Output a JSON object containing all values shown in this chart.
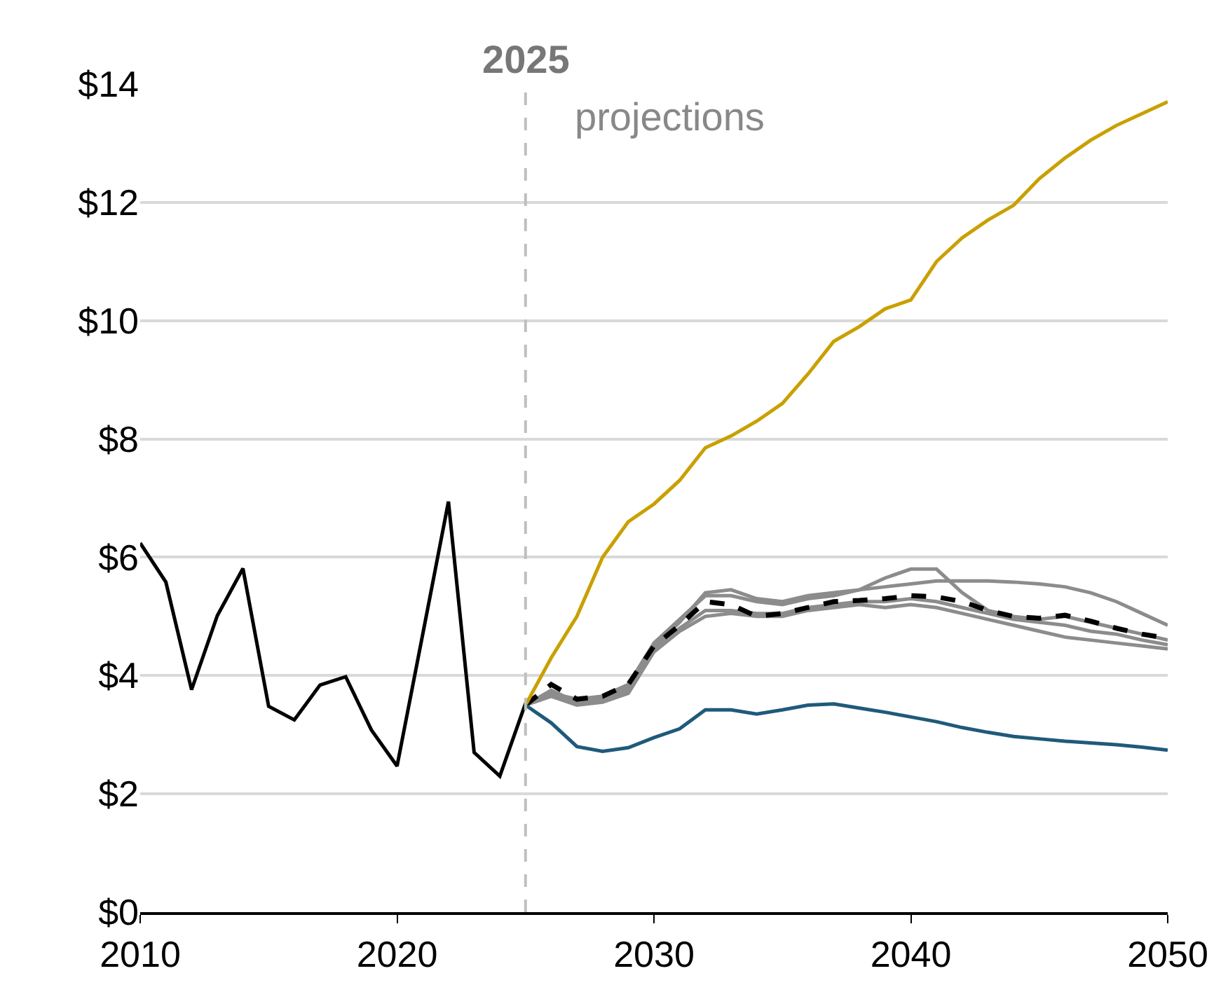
{
  "chart_data": {
    "type": "line",
    "annotations": [
      "projections"
    ],
    "ref_lines": [
      {
        "axis": "x",
        "value": 2025,
        "label": "2025",
        "color": "#bfbfbf",
        "line_style": "dashed"
      }
    ],
    "xlim": [
      2010,
      2050
    ],
    "xticks": [
      2010,
      2020,
      2030,
      2040,
      2050
    ],
    "ylim": [
      0,
      14
    ],
    "yticks": [
      {
        "value": 0,
        "label": "$0"
      },
      {
        "value": 2,
        "label": "$2"
      },
      {
        "value": 4,
        "label": "$4"
      },
      {
        "value": 6,
        "label": "$6"
      },
      {
        "value": 8,
        "label": "$8"
      },
      {
        "value": 10,
        "label": "$10"
      },
      {
        "value": 12,
        "label": "$12"
      },
      {
        "value": 14,
        "label": "$14"
      }
    ],
    "grid": "y",
    "marker": "none",
    "series": [
      {
        "color": "#8c8c8c",
        "x": [
          2025,
          2026,
          2027,
          2028,
          2029,
          2030,
          2031,
          2032,
          2033,
          2034,
          2035,
          2036,
          2037,
          2038,
          2039,
          2040,
          2041,
          2042,
          2043,
          2044,
          2045,
          2046,
          2047,
          2048,
          2049,
          2050
        ],
        "values": [
          3.5,
          3.75,
          3.55,
          3.6,
          3.8,
          4.5,
          4.9,
          5.4,
          5.45,
          5.3,
          5.25,
          5.35,
          5.4,
          5.45,
          5.65,
          5.8,
          5.8,
          5.4,
          5.1,
          5.0,
          4.95,
          5.0,
          4.9,
          4.8,
          4.7,
          4.6
        ]
      },
      {
        "color": "#8c8c8c",
        "x": [
          2025,
          2026,
          2027,
          2028,
          2029,
          2030,
          2031,
          2032,
          2033,
          2034,
          2035,
          2036,
          2037,
          2038,
          2039,
          2040,
          2041,
          2042,
          2043,
          2044,
          2045,
          2046,
          2047,
          2048,
          2049,
          2050
        ],
        "values": [
          3.5,
          3.7,
          3.6,
          3.65,
          3.85,
          4.55,
          4.95,
          5.35,
          5.35,
          5.25,
          5.2,
          5.3,
          5.35,
          5.45,
          5.5,
          5.55,
          5.6,
          5.6,
          5.6,
          5.58,
          5.55,
          5.5,
          5.4,
          5.25,
          5.05,
          4.85
        ]
      },
      {
        "color": "#8c8c8c",
        "x": [
          2025,
          2026,
          2027,
          2028,
          2029,
          2030,
          2031,
          2032,
          2033,
          2034,
          2035,
          2036,
          2037,
          2038,
          2039,
          2040,
          2041,
          2042,
          2043,
          2044,
          2045,
          2046,
          2047,
          2048,
          2049,
          2050
        ],
        "values": [
          3.5,
          3.65,
          3.5,
          3.55,
          3.7,
          4.4,
          4.75,
          5.0,
          5.05,
          5.0,
          5.0,
          5.1,
          5.15,
          5.2,
          5.15,
          5.2,
          5.15,
          5.05,
          4.95,
          4.85,
          4.75,
          4.65,
          4.6,
          4.55,
          4.5,
          4.45
        ]
      },
      {
        "color": "#8c8c8c",
        "x": [
          2025,
          2026,
          2027,
          2028,
          2029,
          2030,
          2031,
          2032,
          2033,
          2034,
          2035,
          2036,
          2037,
          2038,
          2039,
          2040,
          2041,
          2042,
          2043,
          2044,
          2045,
          2046,
          2047,
          2048,
          2049,
          2050
        ],
        "values": [
          3.5,
          3.7,
          3.55,
          3.6,
          3.75,
          4.45,
          4.8,
          5.1,
          5.1,
          5.05,
          5.05,
          5.15,
          5.2,
          5.25,
          5.25,
          5.3,
          5.25,
          5.15,
          5.05,
          4.95,
          4.9,
          4.85,
          4.75,
          4.7,
          4.6,
          4.52
        ]
      },
      {
        "color": "#000000",
        "line_style": "dashed",
        "x": [
          2025,
          2026,
          2027,
          2028,
          2029,
          2030,
          2031,
          2032,
          2033,
          2034,
          2035,
          2036,
          2037,
          2038,
          2039,
          2040,
          2041,
          2042,
          2043,
          2044,
          2045,
          2046,
          2047,
          2048,
          2049,
          2050
        ],
        "values": [
          3.5,
          3.85,
          3.6,
          3.65,
          3.85,
          4.5,
          4.85,
          5.25,
          5.2,
          5.0,
          5.05,
          5.15,
          5.25,
          5.27,
          5.3,
          5.35,
          5.33,
          5.25,
          5.1,
          5.0,
          4.97,
          5.02,
          4.92,
          4.8,
          4.7,
          4.63
        ]
      },
      {
        "color": "#c9a000",
        "x": [
          2025,
          2026,
          2027,
          2028,
          2029,
          2030,
          2031,
          2032,
          2033,
          2034,
          2035,
          2036,
          2037,
          2038,
          2039,
          2040,
          2041,
          2042,
          2043,
          2044,
          2045,
          2046,
          2047,
          2048,
          2049,
          2050
        ],
        "values": [
          3.5,
          4.3,
          5.0,
          6.0,
          6.6,
          6.9,
          7.3,
          7.85,
          8.05,
          8.3,
          8.6,
          9.1,
          9.65,
          9.9,
          10.2,
          10.35,
          11.0,
          11.4,
          11.7,
          11.95,
          12.4,
          12.75,
          13.05,
          13.3,
          13.5,
          13.7
        ]
      },
      {
        "color": "#1f5a7a",
        "x": [
          2025,
          2026,
          2027,
          2028,
          2029,
          2030,
          2031,
          2032,
          2033,
          2034,
          2035,
          2036,
          2037,
          2038,
          2039,
          2040,
          2041,
          2042,
          2043,
          2044,
          2045,
          2046,
          2047,
          2048,
          2049,
          2050
        ],
        "values": [
          3.5,
          3.2,
          2.8,
          2.72,
          2.78,
          2.95,
          3.1,
          3.42,
          3.42,
          3.35,
          3.42,
          3.5,
          3.52,
          3.45,
          3.38,
          3.3,
          3.22,
          3.12,
          3.04,
          2.97,
          2.93,
          2.89,
          2.86,
          2.83,
          2.79,
          2.74
        ]
      },
      {
        "color": "#000000",
        "x": [
          2010,
          2011,
          2012,
          2013,
          2014,
          2015,
          2016,
          2017,
          2018,
          2019,
          2020,
          2021,
          2022,
          2023,
          2024,
          2025
        ],
        "values": [
          6.24,
          5.58,
          3.76,
          5.01,
          5.81,
          3.48,
          3.25,
          3.84,
          3.98,
          3.08,
          2.47,
          4.7,
          6.94,
          2.7,
          2.3,
          3.53
        ]
      }
    ]
  }
}
